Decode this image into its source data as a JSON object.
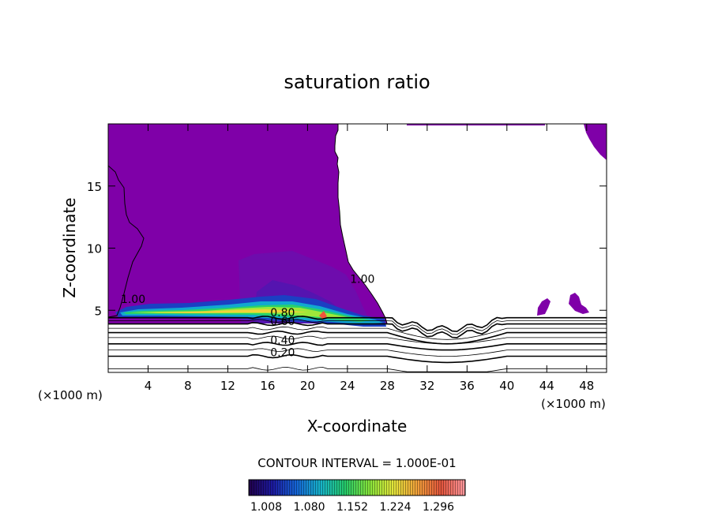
{
  "chart_data": {
    "type": "contour",
    "title": "saturation ratio",
    "xlabel": "X-coordinate",
    "ylabel": "Z-coordinate",
    "x_units_note_left": "(×1000 m)",
    "x_units_note_right": "(×1000 m)",
    "xlim": [
      0,
      50
    ],
    "ylim": [
      0,
      20
    ],
    "x_ticks": [
      4,
      8,
      12,
      16,
      20,
      24,
      28,
      32,
      36,
      40,
      44,
      48
    ],
    "x_tick_labels": [
      "4",
      "8",
      "12",
      "16",
      "20",
      "24",
      "28",
      "32",
      "36",
      "40",
      "44",
      "48"
    ],
    "y_ticks": [
      5,
      10,
      15
    ],
    "y_tick_labels": [
      "5",
      "10",
      "15"
    ],
    "contour_interval_text": "CONTOUR INTERVAL = 1.000E-01",
    "contour_labels": [
      {
        "text": "1.00",
        "x": 2.5,
        "y": 5.6
      },
      {
        "text": "1.00",
        "x": 25.5,
        "y": 7.2
      },
      {
        "text": "0.80",
        "x": 17.5,
        "y": 4.5
      },
      {
        "text": "0.60",
        "x": 17.5,
        "y": 3.8
      },
      {
        "text": "0.40",
        "x": 17.5,
        "y": 2.3
      },
      {
        "text": "0.20",
        "x": 17.5,
        "y": 1.3
      }
    ],
    "colorbar": {
      "tick_labels": [
        "1.008",
        "1.080",
        "1.152",
        "1.224",
        "1.296"
      ],
      "colors": [
        "#20004a",
        "#1c1aa0",
        "#1566d6",
        "#17b3c8",
        "#24c96a",
        "#84e33a",
        "#e2e43a",
        "#f0a03a",
        "#e2543c",
        "#ff9aa0"
      ]
    },
    "fill_color": "#7f00a8",
    "grid": false
  }
}
